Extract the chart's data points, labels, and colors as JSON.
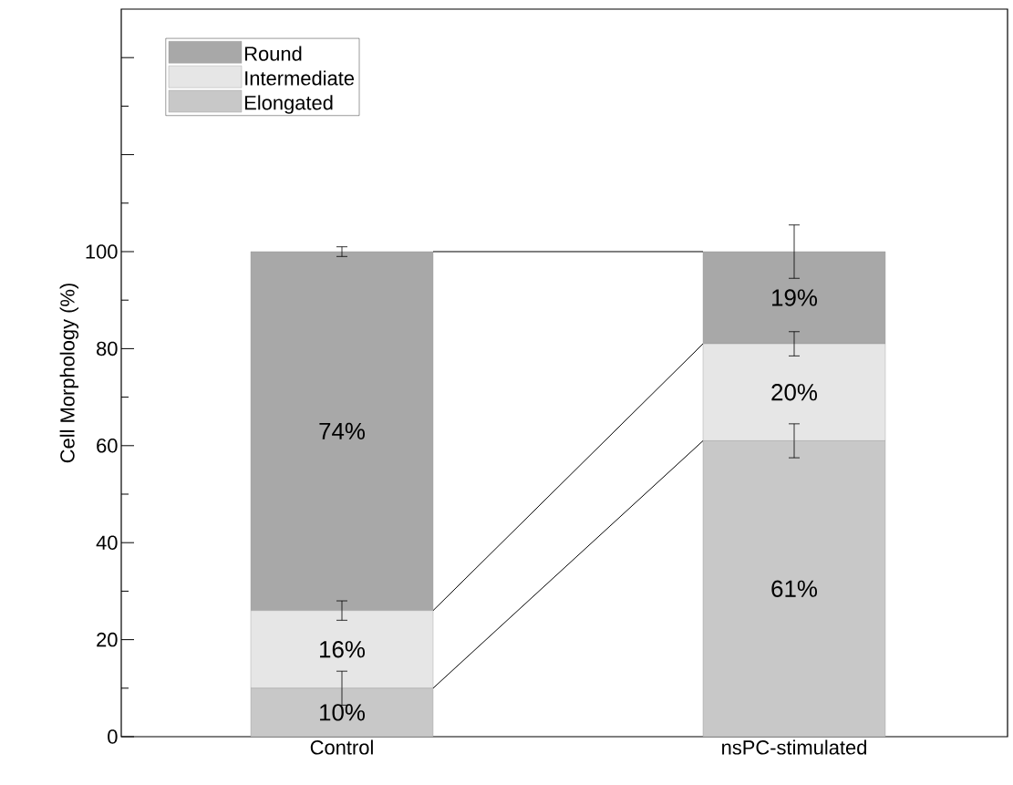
{
  "chart_data": {
    "type": "bar",
    "stacked": true,
    "ylabel": "Cell Morphology (%)",
    "categories": [
      "Control",
      "nsPC-stimulated"
    ],
    "series": [
      {
        "name": "Elongated",
        "color": "#c8c8c8",
        "values": [
          10,
          61
        ],
        "errors": [
          3.5,
          3.5
        ],
        "value_labels": [
          "10%",
          "61%"
        ]
      },
      {
        "name": "Intermediate",
        "color": "#e6e6e6",
        "values": [
          16,
          20
        ],
        "errors": [
          2,
          2.5
        ],
        "value_labels": [
          "16%",
          "20%"
        ]
      },
      {
        "name": "Round",
        "color": "#a8a8a8",
        "values": [
          74,
          19
        ],
        "errors": [
          1,
          5.5
        ],
        "value_labels": [
          "74%",
          "19%"
        ]
      }
    ],
    "ylim": [
      0,
      150
    ],
    "yticks": [
      0,
      20,
      40,
      60,
      80,
      100,
      {
        "value": 120,
        "label": null
      },
      {
        "value": 140,
        "label": null
      }
    ],
    "legend": "top left"
  }
}
